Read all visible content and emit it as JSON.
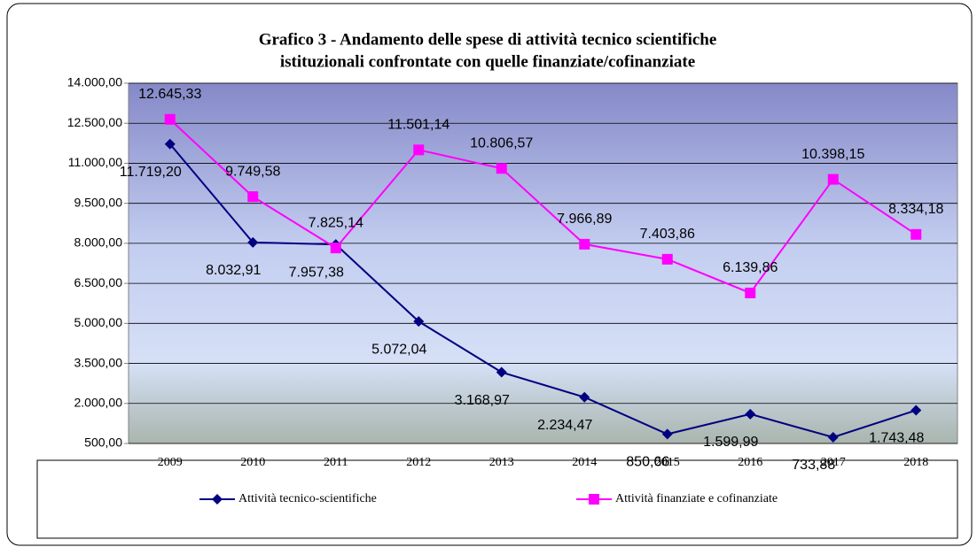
{
  "chart_data": {
    "type": "line",
    "title": [
      "Grafico 3 - Andamento delle spese di attività tecnico scientifiche",
      "istituzionali confrontate con quelle finanziate/cofinanziate"
    ],
    "categories": [
      "2009",
      "2010",
      "2011",
      "2012",
      "2013",
      "2014",
      "2015",
      "2016",
      "2017",
      "2018"
    ],
    "series": [
      {
        "name": "Attività tecnico-scientifiche",
        "color": "#000080",
        "marker": "diamond",
        "values": [
          11719.2,
          8032.91,
          7957.38,
          5072.04,
          3168.97,
          2234.47,
          850.66,
          1599.99,
          733.88,
          1743.48
        ],
        "value_labels": [
          "11.719,20",
          "8.032,91",
          "7.957,38",
          "5.072,04",
          "3.168,97",
          "2.234,47",
          "850,66",
          "1.599,99",
          "733,88",
          "1.743,48"
        ]
      },
      {
        "name": "Attività finanziate e cofinanziate",
        "color": "#ff00ff",
        "marker": "square",
        "values": [
          12645.33,
          9749.58,
          7825.14,
          11501.14,
          10806.57,
          7966.89,
          7403.86,
          6139.86,
          10398.15,
          8334.18
        ],
        "value_labels": [
          "12.645,33",
          "9.749,58",
          "7.825,14",
          "11.501,14",
          "10.806,57",
          "7.966,89",
          "7.403,86",
          "6.139,86",
          "10.398,15",
          "8.334,18"
        ]
      }
    ],
    "ylim": [
      500,
      14000
    ],
    "yticks": [
      {
        "value": 500,
        "label": "500,00"
      },
      {
        "value": 2000,
        "label": "2.000,00"
      },
      {
        "value": 3500,
        "label": "3.500,00"
      },
      {
        "value": 5000,
        "label": "5.000,00"
      },
      {
        "value": 6500,
        "label": "6.500,00"
      },
      {
        "value": 8000,
        "label": "8.000,00"
      },
      {
        "value": 9500,
        "label": "9.500,00"
      },
      {
        "value": 11000,
        "label": "11.000,00"
      },
      {
        "value": 12500,
        "label": "12.500,00"
      },
      {
        "value": 14000,
        "label": "14.000,00"
      }
    ],
    "grid": true,
    "legend": "bottom"
  }
}
